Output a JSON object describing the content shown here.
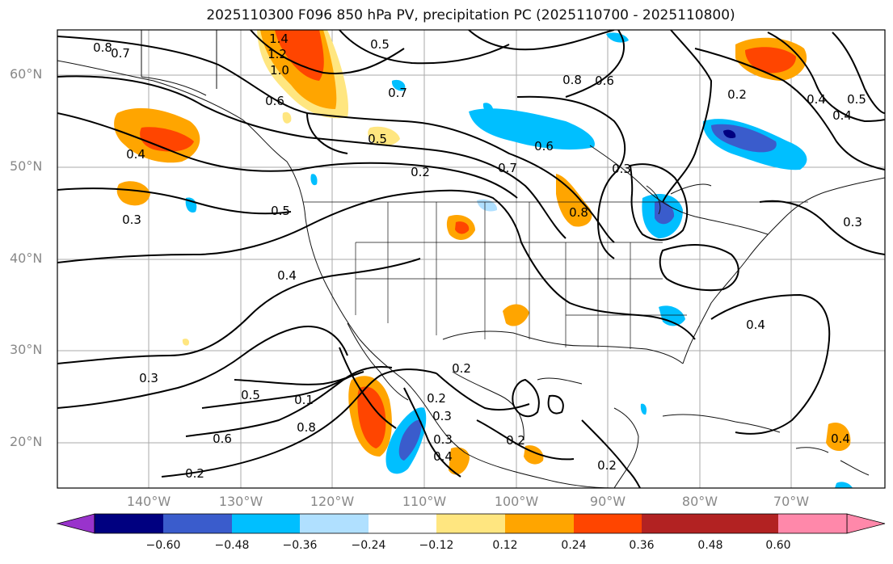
{
  "title": "2025110300 F096 850 hPa PV, precipitation PC (2025110700 - 2025110800)",
  "lat_ticks": [
    "60°N",
    "50°N",
    "40°N",
    "30°N",
    "20°N"
  ],
  "lon_ticks": [
    "140°W",
    "130°W",
    "120°W",
    "110°W",
    "100°W",
    "90°W",
    "80°W",
    "70°W"
  ],
  "contour_labels": [
    "0.8",
    "0.7",
    "1.4",
    "1.2",
    "1.0",
    "0.5",
    "0.6",
    "0.8",
    "0.6",
    "0.7",
    "0.4",
    "0.5",
    "0.2",
    "0.7",
    "0.6",
    "0.8",
    "0.3",
    "0.5",
    "0.4",
    "0.3",
    "0.4",
    "0.2",
    "0.2",
    "0.5",
    "0.1",
    "0.8",
    "0.6",
    "0.3",
    "0.2",
    "0.3",
    "0.4",
    "0.2",
    "0.2",
    "0.4",
    "0.3",
    "0.2",
    "0.4",
    "0.5",
    "0.4",
    "0.3"
  ],
  "colorbar": {
    "ticks": [
      "−0.60",
      "−0.48",
      "−0.36",
      "−0.24",
      "−0.12",
      "0.12",
      "0.24",
      "0.36",
      "0.48",
      "0.60"
    ],
    "colors": [
      "#9933cc",
      "#000080",
      "#3a5ccc",
      "#00bfff",
      "#b0e0ff",
      "#ffffff",
      "#ffe680",
      "#ffa500",
      "#ff4500",
      "#b22222",
      "#ff88aa"
    ]
  }
}
